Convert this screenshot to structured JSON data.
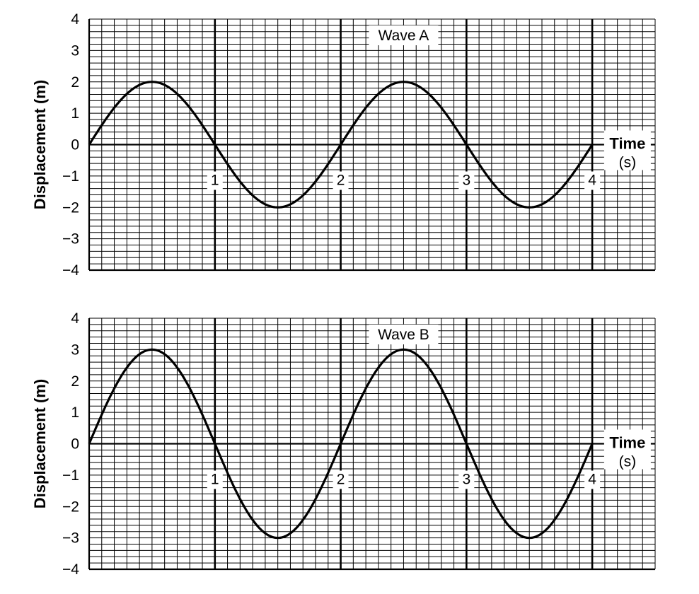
{
  "chart_data": [
    {
      "type": "line",
      "title": "Wave A",
      "xlabel": "Time",
      "xlabel_unit": "(s)",
      "ylabel": "Displacement (m)",
      "xlim": [
        0,
        4.5
      ],
      "ylim": [
        -4,
        4
      ],
      "x_ticks": [
        "1",
        "2",
        "3",
        "4"
      ],
      "y_ticks": [
        "4",
        "3",
        "2",
        "1",
        "0",
        "−1",
        "−2",
        "−3",
        "−4"
      ],
      "grid": true,
      "series": [
        {
          "amplitude": 2,
          "period": 2,
          "x_start": 0,
          "x_end": 4
        }
      ]
    },
    {
      "type": "line",
      "title": "Wave B",
      "xlabel": "Time",
      "xlabel_unit": "(s)",
      "ylabel": "Displacement (m)",
      "xlim": [
        0,
        4.5
      ],
      "ylim": [
        -4,
        4
      ],
      "x_ticks": [
        "1",
        "2",
        "3",
        "4"
      ],
      "y_ticks": [
        "4",
        "3",
        "2",
        "1",
        "0",
        "−1",
        "−2",
        "−3",
        "−4"
      ],
      "grid": true,
      "series": [
        {
          "amplitude": 3,
          "period": 2,
          "x_start": 0,
          "x_end": 4
        }
      ]
    }
  ]
}
